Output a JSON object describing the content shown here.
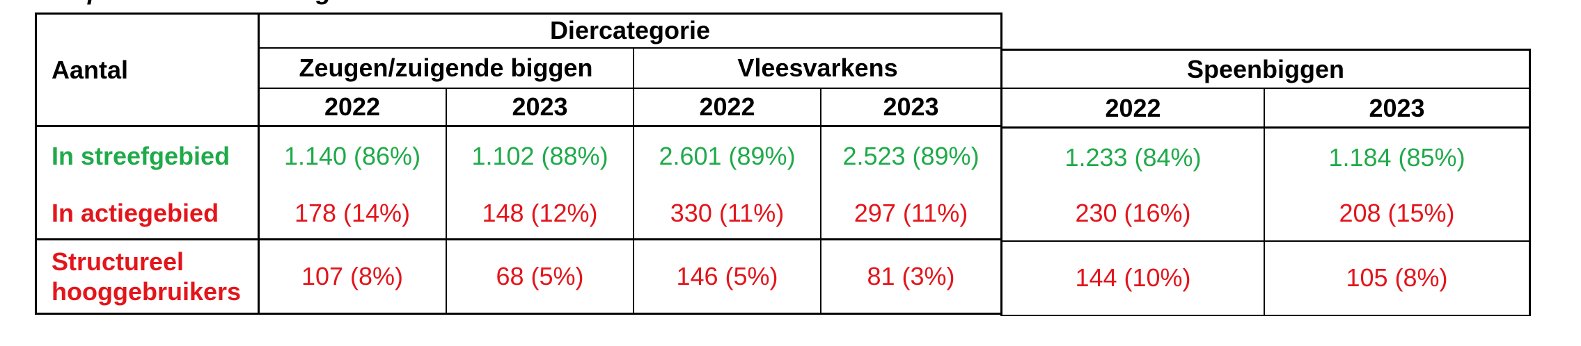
{
  "caption": "en op basis van de Diergeneesmiddelen-database.",
  "table": {
    "row_header_title": "Aantal",
    "group_title": "Diercategorie",
    "categories": [
      "Zeugen/zuigende biggen",
      "Vleesvarkens",
      "Speenbiggen"
    ],
    "years": [
      "2022",
      "2023",
      "2022",
      "2023",
      "2022",
      "2023"
    ],
    "rows": [
      {
        "label": "In streefgebied",
        "color": "#1faa4a",
        "values": [
          "1.140 (86%)",
          "1.102 (88%)",
          "2.601 (89%)",
          "2.523 (89%)",
          "1.233 (84%)",
          "1.184 (85%)"
        ]
      },
      {
        "label": "In actiegebied",
        "color": "#e3151b",
        "values": [
          "178 (14%)",
          "148 (12%)",
          "330 (11%)",
          "297 (11%)",
          "230 (16%)",
          "208 (15%)"
        ]
      },
      {
        "label": "Structureel hooggebruikers",
        "label_line1": "Structureel",
        "label_line2": "hooggebruikers",
        "color": "#e3151b",
        "values": [
          "107 (8%)",
          "68 (5%)",
          "146 (5%)",
          "81 (3%)",
          "144 (10%)",
          "105 (8%)"
        ]
      }
    ]
  }
}
